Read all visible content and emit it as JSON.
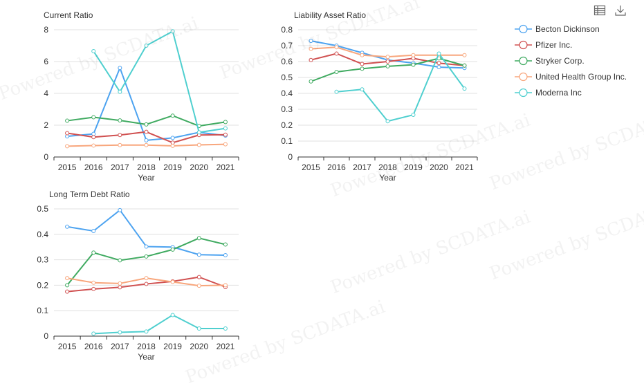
{
  "watermark": "Powered by SCDATA.ai",
  "toolbox": {
    "icons": [
      "data-view-icon",
      "download-icon"
    ]
  },
  "series_meta": [
    {
      "name": "Becton Dickinson",
      "color": "#4da3f0"
    },
    {
      "name": "Pfizer Inc.",
      "color": "#d05050"
    },
    {
      "name": "Stryker Corp.",
      "color": "#3faa60"
    },
    {
      "name": "United Health Group Inc.",
      "color": "#f8a67c"
    },
    {
      "name": "Moderna Inc",
      "color": "#4fcfcf"
    }
  ],
  "chart_data": [
    {
      "type": "line",
      "title": "Current Ratio",
      "xlabel": "Year",
      "categories": [
        "2015",
        "2016",
        "2017",
        "2018",
        "2019",
        "2020",
        "2021"
      ],
      "ylim": [
        0,
        8
      ],
      "yticks": [
        "0",
        "2",
        "4",
        "6",
        "8"
      ],
      "grid": true,
      "series": [
        {
          "name": "Becton Dickinson",
          "values": [
            1.3,
            1.45,
            5.6,
            1.05,
            1.2,
            1.55,
            1.35
          ]
        },
        {
          "name": "Pfizer Inc.",
          "values": [
            1.5,
            1.25,
            1.38,
            1.58,
            0.9,
            1.38,
            1.4
          ]
        },
        {
          "name": "Stryker Corp.",
          "values": [
            2.28,
            2.5,
            2.3,
            2.05,
            2.6,
            1.95,
            2.2
          ]
        },
        {
          "name": "United Health Group Inc.",
          "values": [
            0.68,
            0.72,
            0.75,
            0.75,
            0.7,
            0.76,
            0.8
          ]
        },
        {
          "name": "Moderna Inc",
          "values": [
            null,
            6.65,
            4.1,
            7.0,
            7.9,
            1.55,
            1.8
          ]
        }
      ]
    },
    {
      "type": "line",
      "title": "Liability Asset Ratio",
      "xlabel": "Year",
      "categories": [
        "2015",
        "2016",
        "2017",
        "2018",
        "2019",
        "2020",
        "2021"
      ],
      "ylim": [
        0,
        0.8
      ],
      "yticks": [
        "0",
        "0.1",
        "0.2",
        "0.3",
        "0.4",
        "0.5",
        "0.6",
        "0.7",
        "0.8"
      ],
      "grid": true,
      "series": [
        {
          "name": "Becton Dickinson",
          "values": [
            0.73,
            0.7,
            0.655,
            0.61,
            0.59,
            0.565,
            0.56
          ]
        },
        {
          "name": "Pfizer Inc.",
          "values": [
            0.61,
            0.65,
            0.585,
            0.6,
            0.62,
            0.59,
            0.575
          ]
        },
        {
          "name": "Stryker Corp.",
          "values": [
            0.475,
            0.535,
            0.555,
            0.57,
            0.58,
            0.62,
            0.575
          ]
        },
        {
          "name": "United Health Group Inc.",
          "values": [
            0.68,
            0.69,
            0.64,
            0.63,
            0.64,
            0.64,
            0.64
          ]
        },
        {
          "name": "Moderna Inc",
          "values": [
            null,
            0.41,
            0.425,
            0.225,
            0.265,
            0.65,
            0.43
          ]
        }
      ]
    },
    {
      "type": "line",
      "title": "Long Term Debt Ratio",
      "xlabel": "Year",
      "categories": [
        "2015",
        "2016",
        "2017",
        "2018",
        "2019",
        "2020",
        "2021"
      ],
      "ylim": [
        0,
        0.5
      ],
      "yticks": [
        "0",
        "0.1",
        "0.2",
        "0.3",
        "0.4",
        "0.5"
      ],
      "grid": true,
      "series": [
        {
          "name": "Becton Dickinson",
          "values": [
            0.43,
            0.413,
            0.495,
            0.352,
            0.35,
            0.32,
            0.318
          ]
        },
        {
          "name": "Pfizer Inc.",
          "values": [
            0.175,
            0.185,
            0.192,
            0.205,
            0.215,
            0.232,
            0.193
          ]
        },
        {
          "name": "Stryker Corp.",
          "values": [
            0.2,
            0.328,
            0.298,
            0.313,
            0.34,
            0.385,
            0.36
          ]
        },
        {
          "name": "United Health Group Inc.",
          "values": [
            0.228,
            0.21,
            0.207,
            0.228,
            0.213,
            0.198,
            0.2
          ]
        },
        {
          "name": "Moderna Inc",
          "values": [
            null,
            0.01,
            0.015,
            0.018,
            0.083,
            0.03,
            0.03
          ]
        }
      ]
    }
  ]
}
